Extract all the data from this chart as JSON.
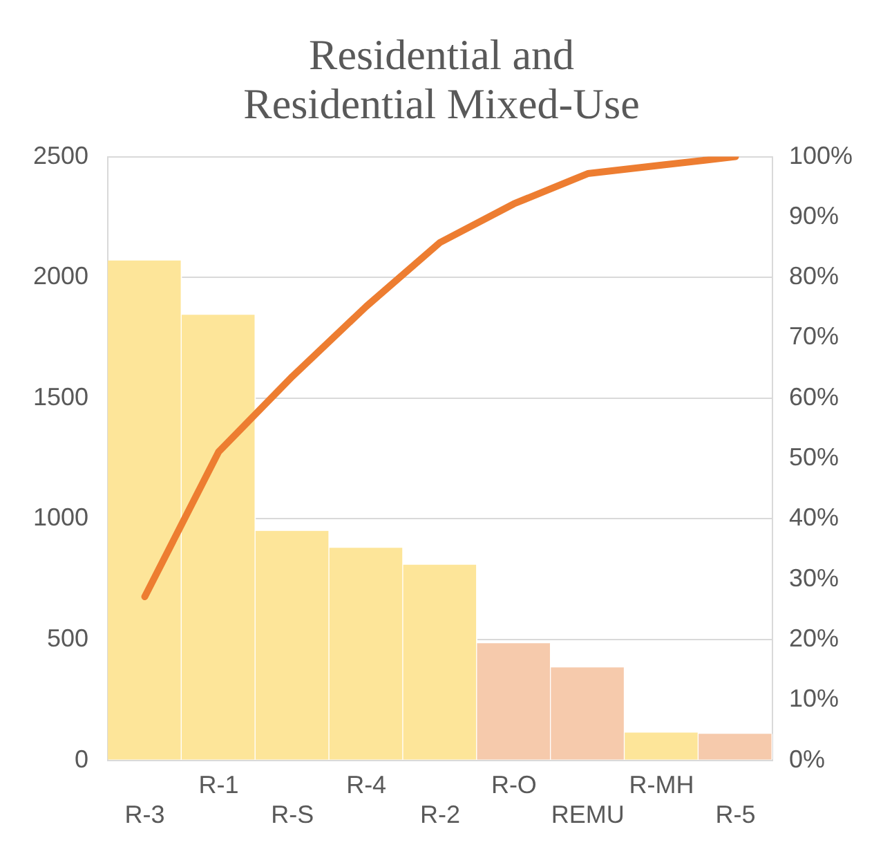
{
  "chart_data": {
    "type": "bar",
    "title": "Residential and\nResidential Mixed-Use",
    "categories": [
      "R-3",
      "R-1",
      "R-S",
      "R-4",
      "R-2",
      "R-O",
      "REMU",
      "R-MH",
      "R-5"
    ],
    "series": [
      {
        "colors": [
          "#fde599",
          "#fde599",
          "#fde599",
          "#fde599",
          "#fde599",
          "#f6caac",
          "#f6caac",
          "#fde599",
          "#f6caac"
        ],
        "values": [
          2070,
          1845,
          950,
          880,
          810,
          485,
          385,
          115,
          110
        ]
      },
      {
        "type": "line",
        "axis": "y2",
        "color": "#ed7d31",
        "values": [
          27.1,
          51.1,
          63.6,
          75.2,
          85.8,
          92.2,
          97.2,
          98.6,
          100
        ]
      }
    ],
    "ylim": [
      0,
      2500
    ],
    "yticks": [
      0,
      500,
      1000,
      1500,
      2000,
      2500
    ],
    "y2lim": [
      0,
      100
    ],
    "y2ticks": [
      {
        "value": 0,
        "label": "0%"
      },
      {
        "value": 10,
        "label": "10%"
      },
      {
        "value": 20,
        "label": "20%"
      },
      {
        "value": 30,
        "label": "30%"
      },
      {
        "value": 40,
        "label": "40%"
      },
      {
        "value": 50,
        "label": "50%"
      },
      {
        "value": 60,
        "label": "60%"
      },
      {
        "value": 70,
        "label": "70%"
      },
      {
        "value": 80,
        "label": "80%"
      },
      {
        "value": 90,
        "label": "90%"
      },
      {
        "value": 100,
        "label": "100%"
      }
    ],
    "grid": "y",
    "legend": false,
    "marker": "none"
  }
}
